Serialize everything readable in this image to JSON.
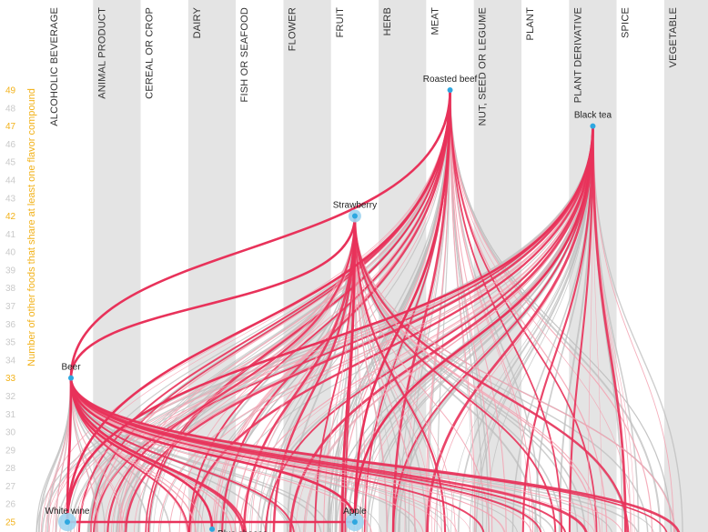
{
  "chart_data": {
    "type": "network",
    "title": "",
    "ylabel": "Number of other foods that share at least one flavor compound",
    "ylim": [
      24.5,
      49.5
    ],
    "y_ticks": [
      49,
      48,
      47,
      46,
      45,
      44,
      43,
      42,
      41,
      40,
      39,
      38,
      37,
      36,
      35,
      34,
      33,
      32,
      31,
      30,
      29,
      28,
      27,
      26,
      25
    ],
    "highlighted_ticks": [
      49,
      47,
      42,
      33,
      25
    ],
    "categories": [
      "ALCOHOLIC BEVERAGE",
      "ANIMAL PRODUCT",
      "CEREAL OR CROP",
      "DAIRY",
      "FISH OR SEAFOOD",
      "FLOWER",
      "FRUIT",
      "HERB",
      "MEAT",
      "NUT, SEED OR LEGUME",
      "PLANT",
      "PLANT DERIVATIVE",
      "SPICE",
      "VEGETABLE"
    ],
    "nodes": [
      {
        "name": "Roasted beef",
        "category": "MEAT",
        "y": 49,
        "label_align": "middle"
      },
      {
        "name": "Black tea",
        "category": "PLANT DERIVATIVE",
        "y": 47,
        "label_align": "middle"
      },
      {
        "name": "Strawberry",
        "category": "FRUIT",
        "y": 42,
        "label_align": "middle"
      },
      {
        "name": "Beer",
        "category": "ALCOHOLIC BEVERAGE",
        "y": 33,
        "label_align": "middle"
      },
      {
        "name": "White wine",
        "category": "ALCOHOLIC BEVERAGE",
        "y": 25,
        "label_align": "middle"
      },
      {
        "name": "Apple",
        "category": "FRUIT",
        "y": 25,
        "label_align": "middle"
      },
      {
        "name": "Blue cheese",
        "category": "DAIRY",
        "y": 24.6,
        "label_align": "start"
      }
    ],
    "highlight_links": [
      [
        "Roasted beef",
        "Beer"
      ],
      [
        "Beer",
        "White wine"
      ],
      [
        "Beer",
        "Apple"
      ],
      [
        "Beer",
        "Blue cheese"
      ],
      [
        "White wine",
        "Apple"
      ],
      [
        "Strawberry",
        "Beer"
      ],
      [
        "Black tea",
        "White wine"
      ],
      [
        "Black tea",
        "Apple"
      ],
      [
        "Roasted beef",
        "White wine"
      ],
      [
        "Roasted beef",
        "Apple"
      ]
    ],
    "colors": {
      "highlight": "#e8325a",
      "highlight_faint": "#f3a2b2",
      "link_gray": "#bdbdbd",
      "band_gray": "#e4e4e4",
      "node": "#2ea7e0",
      "node_halo": "#9fd4ef",
      "axis_accent": "#f2b21a"
    }
  }
}
